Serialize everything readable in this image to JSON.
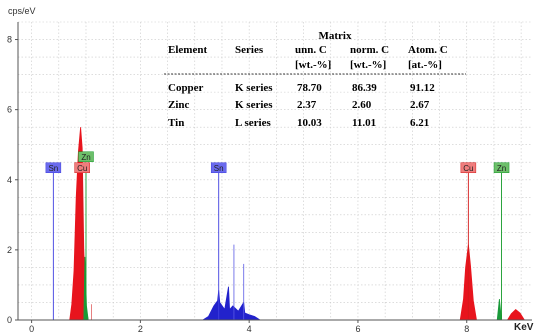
{
  "chart_data": {
    "type": "area",
    "y_unit": "cps/eV",
    "x_unit": "KeV",
    "xlim": [
      -0.25,
      9.2
    ],
    "ylim": [
      0,
      8.5
    ],
    "x_ticks": [
      0,
      2,
      4,
      6,
      8
    ],
    "y_ticks": [
      0,
      2,
      4,
      6,
      8
    ],
    "grid": true,
    "series": [
      {
        "name": "Cu",
        "color": "#e8141d",
        "points": [
          [
            0.7,
            0
          ],
          [
            0.74,
            0.45
          ],
          [
            0.78,
            1.4
          ],
          [
            0.82,
            3.5
          ],
          [
            0.86,
            4.8
          ],
          [
            0.9,
            5.5
          ],
          [
            0.93,
            4.9
          ],
          [
            0.96,
            2.0
          ],
          [
            1.0,
            0.35
          ],
          [
            1.04,
            0
          ],
          [
            7.88,
            0
          ],
          [
            7.94,
            0.6
          ],
          [
            7.98,
            1.5
          ],
          [
            8.03,
            2.15
          ],
          [
            8.07,
            1.55
          ],
          [
            8.12,
            0.55
          ],
          [
            8.18,
            0
          ],
          [
            8.75,
            0
          ],
          [
            8.82,
            0.18
          ],
          [
            8.9,
            0.3
          ],
          [
            8.98,
            0.2
          ],
          [
            9.06,
            0
          ]
        ]
      },
      {
        "name": "Zn",
        "color": "#1a9a3a",
        "points": [
          [
            0.96,
            0
          ],
          [
            0.98,
            1.8
          ],
          [
            1.01,
            0.4
          ],
          [
            1.04,
            0
          ],
          [
            8.56,
            0
          ],
          [
            8.6,
            0.6
          ],
          [
            8.64,
            0
          ]
        ]
      },
      {
        "name": "Sn",
        "color": "#2222cc",
        "points": [
          [
            3.15,
            0
          ],
          [
            3.25,
            0.1
          ],
          [
            3.35,
            0.4
          ],
          [
            3.42,
            0.55
          ],
          [
            3.44,
            0.85
          ],
          [
            3.46,
            0.5
          ],
          [
            3.55,
            0.3
          ],
          [
            3.62,
            0.95
          ],
          [
            3.64,
            0.3
          ],
          [
            3.7,
            0.4
          ],
          [
            3.8,
            0.25
          ],
          [
            3.9,
            0.5
          ],
          [
            3.92,
            0.2
          ],
          [
            4.0,
            0.15
          ],
          [
            4.1,
            0.1
          ],
          [
            4.2,
            0
          ]
        ]
      }
    ],
    "peak_labels": [
      {
        "element": "Sn",
        "energy": 0.4,
        "color": "#6a6aee",
        "line_color": "#3f3fe0",
        "line_top": 4.2
      },
      {
        "element": "Cu",
        "energy": 0.93,
        "color": "#ef7d7d",
        "line_color": "#d41b1b",
        "line_top": 4.2
      },
      {
        "element": "Zn",
        "energy": 1.0,
        "color": "#6dbf6a",
        "line_color": "#159a2a",
        "line_top": 4.2,
        "raised": true
      },
      {
        "element": "Sn",
        "energy": 3.44,
        "color": "#6a6aee",
        "line_color": "#3f3fe0",
        "line_top": 4.2
      },
      {
        "element": "Cu",
        "energy": 8.03,
        "color": "#ef7d7d",
        "line_color": "#d41b1b",
        "line_top": 4.2
      },
      {
        "element": "Zn",
        "energy": 8.64,
        "color": "#6dbf6a",
        "line_color": "#159a2a",
        "line_top": 4.2
      }
    ],
    "minor_lines": [
      {
        "energy": 1.1,
        "top": 0.45,
        "color": "#e06060"
      },
      {
        "energy": 3.72,
        "top": 2.15,
        "color": "#5a5ae6"
      },
      {
        "energy": 3.9,
        "top": 1.6,
        "color": "#5a5ae6"
      }
    ],
    "matrix_table": {
      "title": "Matrix",
      "headers": [
        "Element",
        "Series",
        "unn. C",
        "norm. C",
        "Atom. C"
      ],
      "subheaders": [
        "",
        "",
        "[wt.-%]",
        "[wt.-%]",
        "[at.-%]"
      ],
      "rows": [
        [
          "Copper",
          "K series",
          "78.70",
          "86.39",
          "91.12"
        ],
        [
          "Zinc",
          "K series",
          "2.37",
          "2.60",
          "2.67"
        ],
        [
          "Tin",
          "L series",
          "10.03",
          "11.01",
          "6.21"
        ]
      ]
    }
  }
}
